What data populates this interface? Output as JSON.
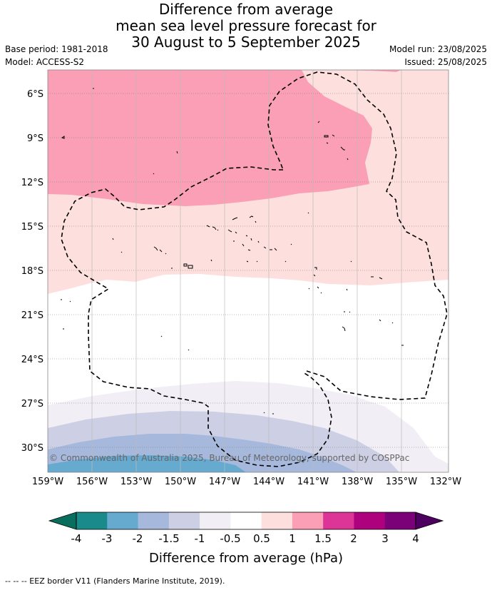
{
  "title": {
    "line1": "Difference from average",
    "line2": "mean sea level pressure forecast for",
    "line3": "30 August to 5 September 2025"
  },
  "meta": {
    "base_period": "Base period: 1981-2018",
    "model": "Model: ACCESS-S2",
    "model_run": "Model run: 23/08/2025",
    "issued": "Issued: 25/08/2025"
  },
  "map": {
    "lat_labels": [
      "6°S",
      "9°S",
      "12°S",
      "15°S",
      "18°S",
      "21°S",
      "24°S",
      "27°S",
      "30°S"
    ],
    "lon_labels": [
      "159°W",
      "156°W",
      "153°W",
      "150°W",
      "147°W",
      "144°W",
      "141°W",
      "138°W",
      "135°W",
      "132°W"
    ],
    "copyright": "© Commonwealth of Australia 2025, Bureau of Meteorology, supported by COSPPac"
  },
  "colorbar": {
    "ticks": [
      "-4",
      "-3",
      "-2",
      "-1.5",
      "-1",
      "-0.5",
      "0.5",
      "1",
      "1.5",
      "2",
      "3",
      "4"
    ],
    "colors": [
      "#1a8a8a",
      "#66aad0",
      "#a6b8db",
      "#cdd0e5",
      "#f2eef5",
      "#ffffff",
      "#fde0dd",
      "#fa9fb5",
      "#dd3497",
      "#ae017e",
      "#7a0177"
    ],
    "under_color": "#0a6e5e",
    "over_color": "#4d0060",
    "label": "Difference from average (hPa)"
  },
  "footnote": "--  --  -- EEZ border V11 (Flanders Marine Institute, 2019)."
}
